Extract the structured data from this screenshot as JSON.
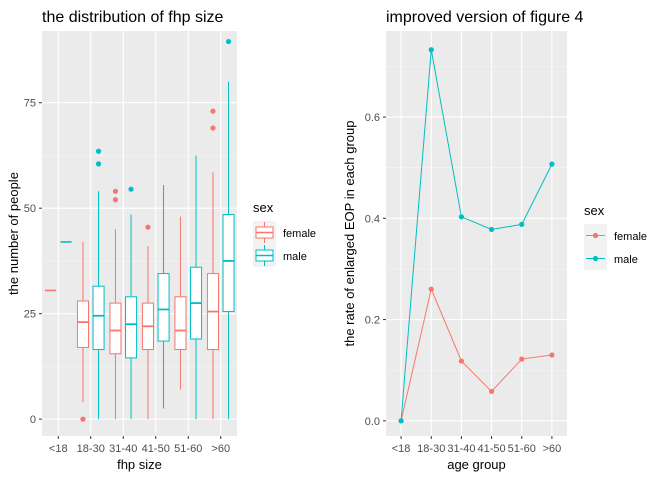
{
  "colors": {
    "female": "#F8766D",
    "male": "#00BFC4",
    "panel": "#EBEBEB",
    "grid_major": "#FFFFFF",
    "grid_minor": "#F5F5F5"
  },
  "chart_data": [
    {
      "type": "boxplot",
      "title": "the distribution of fhp size",
      "xlabel": "fhp size",
      "ylabel": "the number of people",
      "categories": [
        "<18",
        "18-30",
        "31-40",
        "41-50",
        "51-60",
        ">60"
      ],
      "ylim": [
        -4,
        92
      ],
      "yticks": [
        0,
        25,
        50,
        75
      ],
      "grid": true,
      "legend": {
        "title": "sex",
        "position": "right",
        "entries": [
          "female",
          "male"
        ]
      },
      "series": [
        {
          "name": "female",
          "color": "#F8766D",
          "boxes": [
            {
              "category": "<18",
              "min": 30.5,
              "q1": 30.5,
              "median": 30.5,
              "q3": 30.5,
              "max": 30.5,
              "outliers": []
            },
            {
              "category": "18-30",
              "min": 4,
              "q1": 17,
              "median": 23,
              "q3": 28,
              "max": 42,
              "outliers": [
                0
              ]
            },
            {
              "category": "31-40",
              "min": 0,
              "q1": 15.5,
              "median": 21,
              "q3": 27.5,
              "max": 45,
              "outliers": [
                52,
                54
              ]
            },
            {
              "category": "41-50",
              "min": 0,
              "q1": 16.5,
              "median": 22,
              "q3": 27.5,
              "max": 41,
              "outliers": [
                45.5
              ]
            },
            {
              "category": "51-60",
              "min": 7,
              "q1": 16.5,
              "median": 21,
              "q3": 29,
              "max": 48,
              "outliers": []
            },
            {
              "category": ">60",
              "min": 0,
              "q1": 16.5,
              "median": 25.5,
              "q3": 34.5,
              "max": 58.5,
              "outliers": [
                69,
                73
              ]
            }
          ]
        },
        {
          "name": "male",
          "color": "#00BFC4",
          "boxes": [
            {
              "category": "<18",
              "min": 42,
              "q1": 42,
              "median": 42,
              "q3": 42,
              "max": 42,
              "outliers": []
            },
            {
              "category": "18-30",
              "min": 0,
              "q1": 16.5,
              "median": 24.5,
              "q3": 31.5,
              "max": 54,
              "outliers": [
                60.5,
                63.5
              ]
            },
            {
              "category": "31-40",
              "min": 0,
              "q1": 14.5,
              "median": 22.5,
              "q3": 29,
              "max": 48.5,
              "outliers": [
                54.5
              ]
            },
            {
              "category": "41-50",
              "min": 2.5,
              "q1": 18.5,
              "median": 26,
              "q3": 34.5,
              "max": 55.5,
              "outliers": []
            },
            {
              "category": "51-60",
              "min": 0,
              "q1": 19,
              "median": 27.5,
              "q3": 36,
              "max": 62.5,
              "outliers": []
            },
            {
              "category": ">60",
              "min": 0,
              "q1": 25.5,
              "median": 37.5,
              "q3": 48.5,
              "max": 80,
              "outliers": [
                89.5
              ]
            }
          ]
        }
      ]
    },
    {
      "type": "line",
      "title": "improved version of figure 4",
      "xlabel": "age group",
      "ylabel": "the rate of enlarged EOP in each group",
      "categories": [
        "<18",
        "18-30",
        "31-40",
        "41-50",
        "51-60",
        ">60"
      ],
      "ylim": [
        -0.03,
        0.77
      ],
      "yticks": [
        0.0,
        0.2,
        0.4,
        0.6
      ],
      "ytick_labels": [
        "0.0",
        "0.2",
        "0.4",
        "0.6"
      ],
      "grid": true,
      "legend": {
        "title": "sex",
        "position": "right",
        "entries": [
          "female",
          "male"
        ]
      },
      "series": [
        {
          "name": "female",
          "color": "#F8766D",
          "values": [
            0.0,
            0.26,
            0.118,
            0.058,
            0.122,
            0.13
          ]
        },
        {
          "name": "male",
          "color": "#00BFC4",
          "values": [
            0.0,
            0.733,
            0.403,
            0.378,
            0.388,
            0.507
          ]
        }
      ]
    }
  ]
}
